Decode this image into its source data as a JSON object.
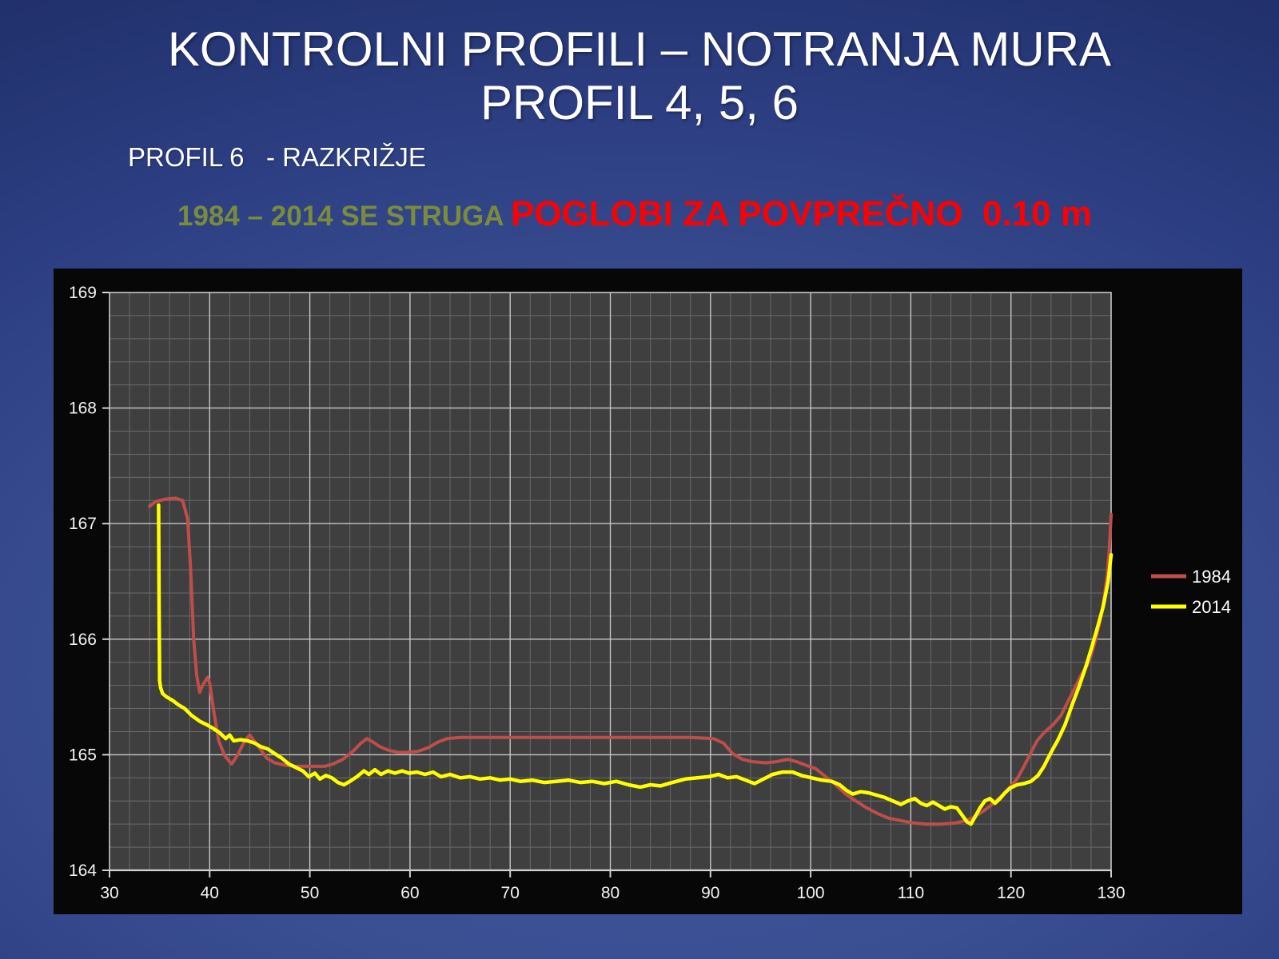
{
  "slide": {
    "title_line1": "KONTROLNI PROFILI – NOTRANJA MURA",
    "title_line2": "PROFIL 4, 5, 6",
    "subtitle": "PROFIL 6   - RAZKRIŽJE",
    "highlight_green": "1984 – 2014 SE STRUGA ",
    "highlight_red": "POGLOBI ZA POVPREČNO  0.10 m",
    "colors": {
      "title": "#ffffff",
      "highlight_green": "#7a8c3c",
      "highlight_red": "#fe0000"
    }
  },
  "chart_data": {
    "type": "line",
    "title": "",
    "xlabel": "",
    "ylabel": "",
    "xlim": [
      30,
      130
    ],
    "ylim": [
      164,
      169
    ],
    "x_ticks": [
      30,
      40,
      50,
      60,
      70,
      80,
      90,
      100,
      110,
      120,
      130
    ],
    "y_ticks": [
      164,
      165,
      166,
      167,
      168,
      169
    ],
    "x_minor_step": 2,
    "y_minor_step": 0.2,
    "grid": "major+minor",
    "legend_position": "right-outside",
    "style": {
      "frame_bg": "#070707",
      "plot_bg": "#3f3f3f",
      "grid_minor": "#6a6a6a",
      "grid_major": "#c6c6c6",
      "axis_line": "#d0d0d0",
      "label_color": "#f2f2f2",
      "label_size": 21
    },
    "series": [
      {
        "name": "1984",
        "color": "#bf4e4b",
        "width": 4,
        "points": [
          [
            34,
            167.15
          ],
          [
            34.6,
            167.19
          ],
          [
            35.5,
            167.21
          ],
          [
            36.6,
            167.22
          ],
          [
            37.3,
            167.2
          ],
          [
            37.8,
            167.04
          ],
          [
            38.1,
            166.6
          ],
          [
            38.4,
            166
          ],
          [
            38.7,
            165.69
          ],
          [
            39,
            165.54
          ],
          [
            39.3,
            165.6
          ],
          [
            39.8,
            165.67
          ],
          [
            40,
            165.62
          ],
          [
            40.4,
            165.38
          ],
          [
            40.9,
            165.12
          ],
          [
            41.5,
            164.99
          ],
          [
            42.2,
            164.92
          ],
          [
            42.8,
            165
          ],
          [
            43.5,
            165.12
          ],
          [
            44,
            165.17
          ],
          [
            44.8,
            165.08
          ],
          [
            45.7,
            164.97
          ],
          [
            46.5,
            164.93
          ],
          [
            47.5,
            164.91
          ],
          [
            48.5,
            164.9
          ],
          [
            50,
            164.9
          ],
          [
            51.5,
            164.9
          ],
          [
            52.3,
            164.92
          ],
          [
            53.3,
            164.96
          ],
          [
            54.3,
            165.03
          ],
          [
            55.1,
            165.1
          ],
          [
            55.7,
            165.14
          ],
          [
            56.3,
            165.11
          ],
          [
            57,
            165.07
          ],
          [
            57.8,
            165.04
          ],
          [
            58.8,
            165.02
          ],
          [
            59.8,
            165.02
          ],
          [
            60.8,
            165.03
          ],
          [
            61.8,
            165.06
          ],
          [
            62.8,
            165.11
          ],
          [
            63.7,
            165.14
          ],
          [
            65,
            165.15
          ],
          [
            68,
            165.15
          ],
          [
            72,
            165.15
          ],
          [
            76,
            165.15
          ],
          [
            80,
            165.15
          ],
          [
            84,
            165.15
          ],
          [
            88,
            165.15
          ],
          [
            90.3,
            165.14
          ],
          [
            91.3,
            165.1
          ],
          [
            92.2,
            165.01
          ],
          [
            93.2,
            164.96
          ],
          [
            94.2,
            164.94
          ],
          [
            95.5,
            164.93
          ],
          [
            96.6,
            164.94
          ],
          [
            97.7,
            164.96
          ],
          [
            98.6,
            164.94
          ],
          [
            99.5,
            164.91
          ],
          [
            100.5,
            164.88
          ],
          [
            101.5,
            164.81
          ],
          [
            102.5,
            164.74
          ],
          [
            103.5,
            164.66
          ],
          [
            104.5,
            164.6
          ],
          [
            105.6,
            164.54
          ],
          [
            106.7,
            164.49
          ],
          [
            107.8,
            164.45
          ],
          [
            109,
            164.43
          ],
          [
            110.2,
            164.41
          ],
          [
            111.5,
            164.4
          ],
          [
            113,
            164.4
          ],
          [
            114.5,
            164.41
          ],
          [
            115.5,
            164.43
          ],
          [
            116.3,
            164.46
          ],
          [
            117.2,
            164.51
          ],
          [
            118.1,
            164.57
          ],
          [
            119,
            164.64
          ],
          [
            119.8,
            164.71
          ],
          [
            120.6,
            164.79
          ],
          [
            121.3,
            164.9
          ],
          [
            122,
            165.02
          ],
          [
            122.6,
            165.12
          ],
          [
            123.3,
            165.19
          ],
          [
            124.2,
            165.26
          ],
          [
            125,
            165.34
          ],
          [
            125.8,
            165.48
          ],
          [
            126.5,
            165.6
          ],
          [
            127,
            165.69
          ],
          [
            127.6,
            165.77
          ],
          [
            128,
            165.86
          ],
          [
            128.5,
            166.01
          ],
          [
            129,
            166.2
          ],
          [
            129.3,
            166.36
          ],
          [
            129.6,
            166.55
          ],
          [
            129.8,
            166.75
          ],
          [
            129.95,
            167
          ],
          [
            130,
            167.08
          ]
        ]
      },
      {
        "name": "2014",
        "color": "#ffff00",
        "width": 4.5,
        "points": [
          [
            34.9,
            167.16
          ],
          [
            34.95,
            166.3
          ],
          [
            35,
            165.64
          ],
          [
            35.1,
            165.58
          ],
          [
            35.3,
            165.53
          ],
          [
            35.7,
            165.5
          ],
          [
            36.3,
            165.47
          ],
          [
            36.9,
            165.43
          ],
          [
            37.5,
            165.4
          ],
          [
            38.2,
            165.34
          ],
          [
            39,
            165.29
          ],
          [
            39.7,
            165.26
          ],
          [
            40.3,
            165.23
          ],
          [
            41,
            165.19
          ],
          [
            41.6,
            165.14
          ],
          [
            42,
            165.17
          ],
          [
            42.4,
            165.12
          ],
          [
            43.1,
            165.13
          ],
          [
            43.8,
            165.12
          ],
          [
            44.5,
            165.1
          ],
          [
            45.1,
            165.07
          ],
          [
            45.8,
            165.05
          ],
          [
            46.5,
            165.01
          ],
          [
            47.2,
            164.97
          ],
          [
            47.9,
            164.92
          ],
          [
            48.6,
            164.89
          ],
          [
            49.3,
            164.86
          ],
          [
            49.9,
            164.81
          ],
          [
            50.5,
            164.84
          ],
          [
            51,
            164.79
          ],
          [
            51.6,
            164.82
          ],
          [
            52.2,
            164.8
          ],
          [
            52.8,
            164.76
          ],
          [
            53.4,
            164.74
          ],
          [
            54,
            164.77
          ],
          [
            54.7,
            164.81
          ],
          [
            55.4,
            164.86
          ],
          [
            55.9,
            164.83
          ],
          [
            56.5,
            164.87
          ],
          [
            57.1,
            164.83
          ],
          [
            57.8,
            164.86
          ],
          [
            58.5,
            164.84
          ],
          [
            59.2,
            164.86
          ],
          [
            59.9,
            164.84
          ],
          [
            60.7,
            164.85
          ],
          [
            61.5,
            164.83
          ],
          [
            62.3,
            164.85
          ],
          [
            63.1,
            164.81
          ],
          [
            64,
            164.83
          ],
          [
            65,
            164.8
          ],
          [
            66,
            164.81
          ],
          [
            67,
            164.79
          ],
          [
            68,
            164.8
          ],
          [
            69,
            164.78
          ],
          [
            70,
            164.79
          ],
          [
            71,
            164.77
          ],
          [
            72.2,
            164.78
          ],
          [
            73.4,
            164.76
          ],
          [
            74.6,
            164.77
          ],
          [
            75.8,
            164.78
          ],
          [
            77,
            164.76
          ],
          [
            78.2,
            164.77
          ],
          [
            79.4,
            164.75
          ],
          [
            80.6,
            164.77
          ],
          [
            81.8,
            164.74
          ],
          [
            83,
            164.72
          ],
          [
            84,
            164.74
          ],
          [
            85,
            164.73
          ],
          [
            86.2,
            164.76
          ],
          [
            87.5,
            164.79
          ],
          [
            88.7,
            164.8
          ],
          [
            89.8,
            164.81
          ],
          [
            90.8,
            164.83
          ],
          [
            91.7,
            164.8
          ],
          [
            92.6,
            164.81
          ],
          [
            93.5,
            164.78
          ],
          [
            94.4,
            164.75
          ],
          [
            95.3,
            164.79
          ],
          [
            96.2,
            164.83
          ],
          [
            97.2,
            164.85
          ],
          [
            98.2,
            164.85
          ],
          [
            99.1,
            164.82
          ],
          [
            100.1,
            164.8
          ],
          [
            101.1,
            164.78
          ],
          [
            102.1,
            164.77
          ],
          [
            102.9,
            164.74
          ],
          [
            103.6,
            164.69
          ],
          [
            104.2,
            164.66
          ],
          [
            105,
            164.68
          ],
          [
            105.8,
            164.67
          ],
          [
            106.6,
            164.65
          ],
          [
            107.4,
            164.63
          ],
          [
            108.2,
            164.6
          ],
          [
            109,
            164.57
          ],
          [
            109.7,
            164.6
          ],
          [
            110.4,
            164.62
          ],
          [
            111,
            164.58
          ],
          [
            111.6,
            164.56
          ],
          [
            112.2,
            164.59
          ],
          [
            112.8,
            164.56
          ],
          [
            113.4,
            164.53
          ],
          [
            114,
            164.55
          ],
          [
            114.6,
            164.54
          ],
          [
            115.1,
            164.48
          ],
          [
            115.6,
            164.42
          ],
          [
            116,
            164.4
          ],
          [
            116.4,
            164.46
          ],
          [
            116.9,
            164.54
          ],
          [
            117.4,
            164.6
          ],
          [
            117.9,
            164.62
          ],
          [
            118.4,
            164.58
          ],
          [
            118.9,
            164.62
          ],
          [
            119.4,
            164.67
          ],
          [
            119.9,
            164.71
          ],
          [
            120.6,
            164.74
          ],
          [
            121.3,
            164.75
          ],
          [
            122,
            164.77
          ],
          [
            122.7,
            164.82
          ],
          [
            123.3,
            164.9
          ],
          [
            124,
            165.02
          ],
          [
            124.7,
            165.13
          ],
          [
            125.4,
            165.26
          ],
          [
            126.1,
            165.43
          ],
          [
            126.8,
            165.59
          ],
          [
            127.5,
            165.77
          ],
          [
            128.1,
            165.94
          ],
          [
            128.7,
            166.12
          ],
          [
            129.2,
            166.28
          ],
          [
            129.7,
            166.5
          ],
          [
            130,
            166.73
          ]
        ]
      }
    ]
  }
}
